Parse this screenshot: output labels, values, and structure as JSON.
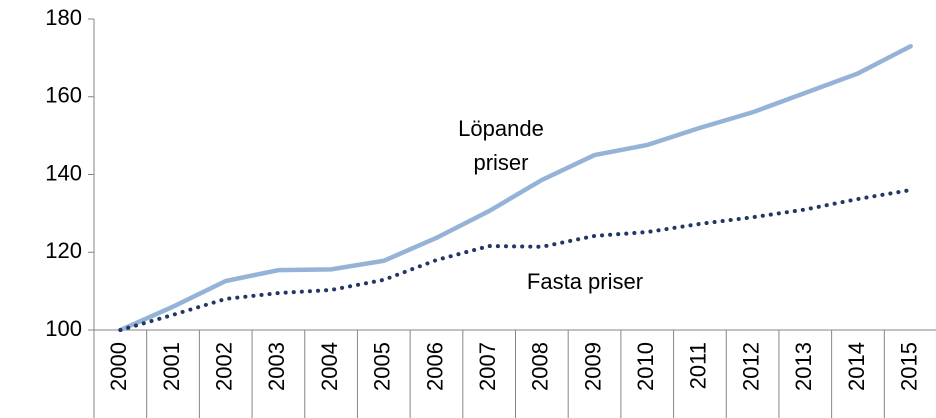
{
  "chart_data": {
    "type": "line",
    "categories": [
      "2000",
      "2001",
      "2002",
      "2003",
      "2004",
      "2005",
      "2006",
      "2007",
      "2008",
      "2009",
      "2010",
      "2011",
      "2012",
      "2013",
      "2014",
      "2015"
    ],
    "series": [
      {
        "name": "Löpande priser",
        "color": "#95b3d7",
        "dash": false,
        "values": [
          100,
          106,
          112.6,
          115.4,
          115.6,
          117.8,
          123.7,
          130.6,
          138.6,
          145,
          147.6,
          152,
          156,
          161,
          166,
          173
        ]
      },
      {
        "name": "Fasta priser",
        "color": "#1f3864",
        "dash": true,
        "values": [
          100,
          103.9,
          108,
          109.5,
          110.3,
          112.9,
          118,
          121.6,
          121.4,
          124.2,
          125.2,
          127.3,
          129,
          131,
          133.7,
          136
        ]
      }
    ],
    "ylim": [
      100,
      180
    ],
    "yticks": [
      100,
      120,
      140,
      160,
      180
    ],
    "grid": false
  }
}
